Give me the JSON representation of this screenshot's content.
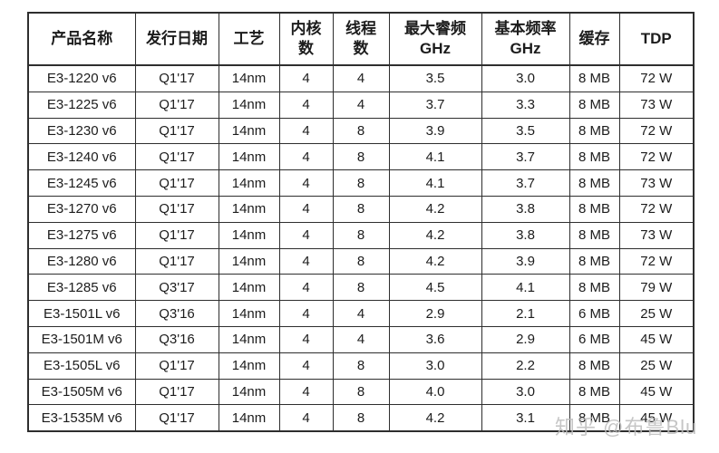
{
  "table": {
    "header_labels": [
      "产品名称",
      "发行日期",
      "工艺",
      "内核\n数",
      "线程\n数",
      "最大睿频\nGHz",
      "基本频率\nGHz",
      "缓存",
      "TDP"
    ]
  },
  "watermark": {
    "text": "知乎 @布鲁Blu",
    "color": "#bdbdbd"
  },
  "chart_data": {
    "type": "table",
    "title": "Intel Xeon E3 v6 处理器规格表",
    "columns": [
      "产品名称",
      "发行日期",
      "工艺",
      "内核数",
      "线程数",
      "最大睿频 GHz",
      "基本频率 GHz",
      "缓存",
      "TDP"
    ],
    "rows": [
      [
        "E3-1220 v6",
        "Q1'17",
        "14nm",
        "4",
        "4",
        "3.5",
        "3.0",
        "8 MB",
        "72 W"
      ],
      [
        "E3-1225 v6",
        "Q1'17",
        "14nm",
        "4",
        "4",
        "3.7",
        "3.3",
        "8 MB",
        "73 W"
      ],
      [
        "E3-1230 v6",
        "Q1'17",
        "14nm",
        "4",
        "8",
        "3.9",
        "3.5",
        "8 MB",
        "72 W"
      ],
      [
        "E3-1240 v6",
        "Q1'17",
        "14nm",
        "4",
        "8",
        "4.1",
        "3.7",
        "8 MB",
        "72 W"
      ],
      [
        "E3-1245 v6",
        "Q1'17",
        "14nm",
        "4",
        "8",
        "4.1",
        "3.7",
        "8 MB",
        "73 W"
      ],
      [
        "E3-1270 v6",
        "Q1'17",
        "14nm",
        "4",
        "8",
        "4.2",
        "3.8",
        "8 MB",
        "72 W"
      ],
      [
        "E3-1275 v6",
        "Q1'17",
        "14nm",
        "4",
        "8",
        "4.2",
        "3.8",
        "8 MB",
        "73 W"
      ],
      [
        "E3-1280 v6",
        "Q1'17",
        "14nm",
        "4",
        "8",
        "4.2",
        "3.9",
        "8 MB",
        "72 W"
      ],
      [
        "E3-1285 v6",
        "Q3'17",
        "14nm",
        "4",
        "8",
        "4.5",
        "4.1",
        "8 MB",
        "79 W"
      ],
      [
        "E3-1501L v6",
        "Q3'16",
        "14nm",
        "4",
        "4",
        "2.9",
        "2.1",
        "6 MB",
        "25 W"
      ],
      [
        "E3-1501M v6",
        "Q3'16",
        "14nm",
        "4",
        "4",
        "3.6",
        "2.9",
        "6 MB",
        "45 W"
      ],
      [
        "E3-1505L v6",
        "Q1'17",
        "14nm",
        "4",
        "8",
        "3.0",
        "2.2",
        "8 MB",
        "25 W"
      ],
      [
        "E3-1505M v6",
        "Q1'17",
        "14nm",
        "4",
        "8",
        "4.0",
        "3.0",
        "8 MB",
        "45 W"
      ],
      [
        "E3-1535M v6",
        "Q1'17",
        "14nm",
        "4",
        "8",
        "4.2",
        "3.1",
        "8 MB",
        "45 W"
      ]
    ]
  }
}
